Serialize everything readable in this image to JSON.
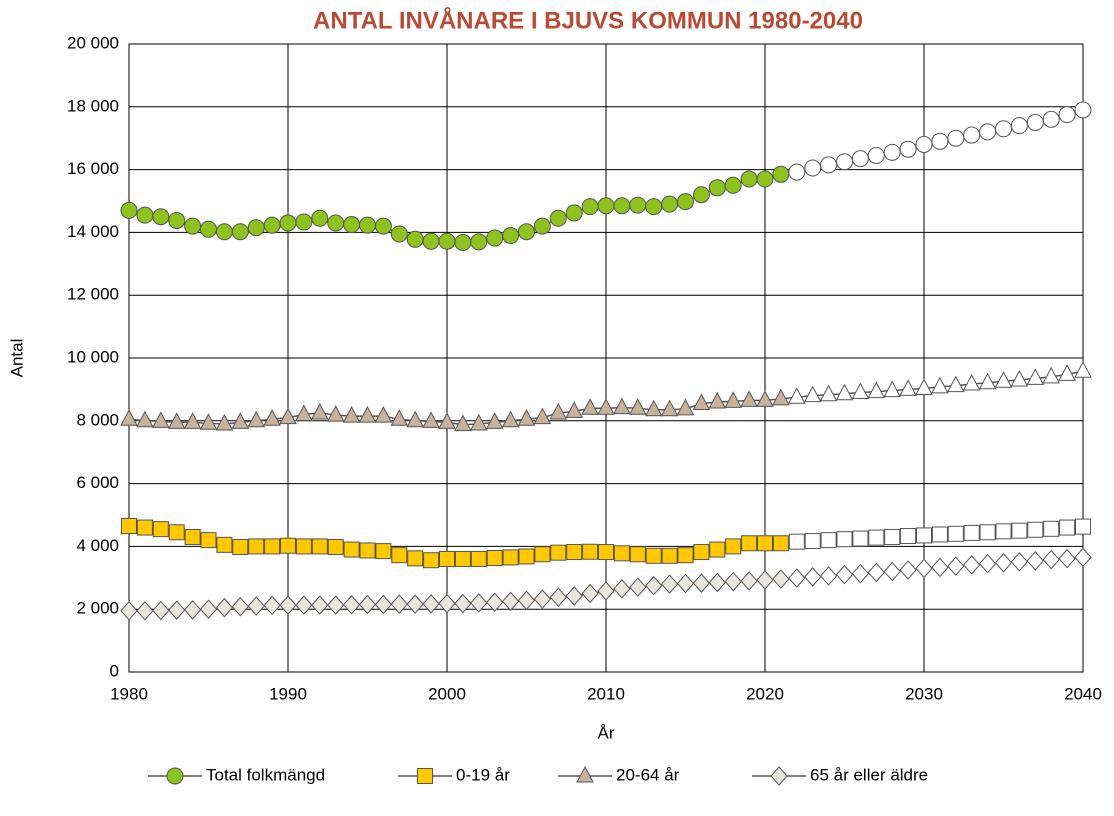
{
  "chart_data": {
    "type": "line",
    "title": "ANTAL INVÅNARE I BJUVS KOMMUN 1980-2040",
    "x_label": "År",
    "y_label": "Antal",
    "x": [
      1980,
      1981,
      1982,
      1983,
      1984,
      1985,
      1986,
      1987,
      1988,
      1989,
      1990,
      1991,
      1992,
      1993,
      1994,
      1995,
      1996,
      1997,
      1998,
      1999,
      2000,
      2001,
      2002,
      2003,
      2004,
      2005,
      2006,
      2007,
      2008,
      2009,
      2010,
      2011,
      2012,
      2013,
      2014,
      2015,
      2016,
      2017,
      2018,
      2019,
      2020,
      2021,
      2022,
      2023,
      2024,
      2025,
      2026,
      2027,
      2028,
      2029,
      2030,
      2031,
      2032,
      2033,
      2034,
      2035,
      2036,
      2037,
      2038,
      2039,
      2040
    ],
    "forecast_start": 2022,
    "forecast_fill": "#ffffff",
    "series": [
      {
        "name": "Total folkmängd",
        "marker": "circle",
        "color": "#8dc21f",
        "values": [
          14700,
          14550,
          14500,
          14380,
          14200,
          14100,
          14020,
          14020,
          14150,
          14230,
          14300,
          14330,
          14450,
          14300,
          14250,
          14230,
          14200,
          13950,
          13780,
          13720,
          13720,
          13680,
          13700,
          13820,
          13900,
          14020,
          14200,
          14450,
          14620,
          14820,
          14850,
          14850,
          14870,
          14820,
          14900,
          14980,
          15200,
          15420,
          15500,
          15700,
          15700,
          15850,
          15920,
          16050,
          16150,
          16250,
          16350,
          16450,
          16550,
          16650,
          16800,
          16900,
          17000,
          17100,
          17200,
          17300,
          17400,
          17500,
          17600,
          17750,
          17900
        ]
      },
      {
        "name": "0-19 år",
        "marker": "square",
        "color": "#ffc800",
        "values": [
          4650,
          4600,
          4550,
          4450,
          4300,
          4200,
          4050,
          3980,
          4000,
          4000,
          4020,
          4000,
          4000,
          3980,
          3900,
          3870,
          3850,
          3720,
          3620,
          3560,
          3600,
          3600,
          3600,
          3630,
          3650,
          3680,
          3750,
          3800,
          3820,
          3830,
          3820,
          3780,
          3750,
          3700,
          3700,
          3720,
          3820,
          3900,
          4000,
          4100,
          4100,
          4100,
          4150,
          4170,
          4200,
          4230,
          4250,
          4280,
          4300,
          4330,
          4350,
          4380,
          4400,
          4430,
          4450,
          4480,
          4500,
          4530,
          4560,
          4600,
          4630
        ]
      },
      {
        "name": "20-64 år",
        "marker": "triangle",
        "color": "#c9b29c",
        "values": [
          8050,
          8000,
          7980,
          7950,
          7950,
          7920,
          7900,
          7950,
          8000,
          8050,
          8100,
          8200,
          8250,
          8180,
          8150,
          8150,
          8150,
          8050,
          8000,
          7980,
          7950,
          7880,
          7900,
          7950,
          8000,
          8050,
          8100,
          8250,
          8300,
          8400,
          8400,
          8420,
          8400,
          8350,
          8350,
          8380,
          8550,
          8600,
          8620,
          8650,
          8650,
          8700,
          8750,
          8800,
          8830,
          8860,
          8900,
          8930,
          8960,
          9000,
          9030,
          9080,
          9120,
          9170,
          9210,
          9260,
          9300,
          9350,
          9400,
          9480,
          9580
        ]
      },
      {
        "name": "65 år eller äldre",
        "marker": "diamond",
        "color": "#ebe6dc",
        "values": [
          1950,
          1950,
          1960,
          1970,
          1980,
          2000,
          2050,
          2080,
          2100,
          2120,
          2130,
          2130,
          2130,
          2130,
          2140,
          2150,
          2150,
          2160,
          2160,
          2170,
          2180,
          2180,
          2200,
          2220,
          2250,
          2280,
          2320,
          2380,
          2420,
          2500,
          2580,
          2650,
          2700,
          2750,
          2800,
          2820,
          2830,
          2850,
          2880,
          2900,
          2930,
          2960,
          2990,
          3030,
          3060,
          3100,
          3130,
          3170,
          3200,
          3250,
          3300,
          3330,
          3370,
          3410,
          3450,
          3480,
          3510,
          3540,
          3580,
          3610,
          3650
        ]
      }
    ],
    "line_color": "#555555",
    "xlim": [
      1980,
      2040
    ],
    "xticks": [
      1980,
      1990,
      2000,
      2010,
      2020,
      2030,
      2040
    ],
    "ylim": [
      0,
      20000
    ],
    "yticks": [
      0,
      {
        "value": 2000,
        "label": "2 000"
      },
      {
        "value": 4000,
        "label": "4 000"
      },
      {
        "value": 6000,
        "label": "6 000"
      },
      {
        "value": 8000,
        "label": "8 000"
      },
      {
        "value": 10000,
        "label": "10 000"
      },
      {
        "value": 12000,
        "label": "12 000"
      },
      {
        "value": 14000,
        "label": "14 000"
      },
      {
        "value": 16000,
        "label": "16 000"
      },
      {
        "value": 18000,
        "label": "18 000"
      },
      {
        "value": 20000,
        "label": "20 000"
      }
    ],
    "grid": true,
    "legend": "bottom"
  }
}
